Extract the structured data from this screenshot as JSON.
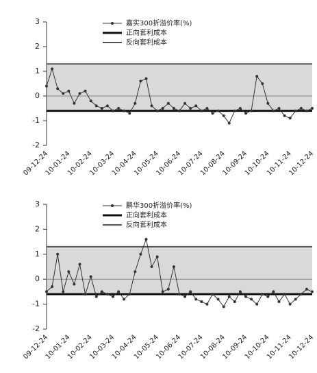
{
  "chart_data": [
    {
      "type": "line",
      "categories": [
        "09-12-24",
        null,
        null,
        null,
        "10-01-24",
        null,
        null,
        null,
        "10-02-24",
        null,
        null,
        null,
        "10-03-24",
        null,
        null,
        null,
        "10-04-24",
        null,
        null,
        null,
        "10-05-24",
        null,
        null,
        null,
        "10-06-24",
        null,
        null,
        null,
        "10-07-24",
        null,
        null,
        null,
        "10-08-24",
        null,
        null,
        null,
        "10-09-24",
        null,
        null,
        null,
        "10-10-24",
        null,
        null,
        null,
        "10-11-24",
        null,
        null,
        null,
        "10-12-24"
      ],
      "series": [
        {
          "name": "嘉实300折溢价率(%)",
          "color": "#333333",
          "values": [
            0.4,
            1.1,
            0.3,
            0.1,
            0.2,
            -0.3,
            0.1,
            0.2,
            -0.2,
            -0.4,
            -0.5,
            -0.4,
            -0.6,
            -0.5,
            -0.6,
            -0.7,
            -0.3,
            0.6,
            0.7,
            -0.4,
            -0.6,
            -0.5,
            -0.3,
            -0.5,
            -0.6,
            -0.3,
            -0.5,
            -0.4,
            -0.6,
            -0.5,
            -0.7,
            -0.6,
            -0.8,
            -1.1,
            -0.6,
            -0.5,
            -0.7,
            -0.6,
            0.8,
            0.5,
            -0.3,
            -0.6,
            -0.5,
            -0.8,
            -0.9,
            -0.6,
            -0.5,
            -0.6,
            -0.5
          ]
        }
      ],
      "reference_lines": [
        {
          "name": "正向套利成本",
          "color": "#111111",
          "value": -0.6
        },
        {
          "name": "反向套利成本",
          "color": "#555555",
          "value": 1.3
        }
      ],
      "band_color": "#d9d9d9",
      "ylim": [
        -2,
        3
      ],
      "yticks": [
        -2,
        -1,
        0,
        1,
        2,
        3
      ]
    },
    {
      "type": "line",
      "categories": [
        "09-12-24",
        null,
        null,
        null,
        "10-01-24",
        null,
        null,
        null,
        "10-02-24",
        null,
        null,
        null,
        "10-03-24",
        null,
        null,
        null,
        "10-04-24",
        null,
        null,
        null,
        "10-05-24",
        null,
        null,
        null,
        "10-06-24",
        null,
        null,
        null,
        "10-07-24",
        null,
        null,
        null,
        "10-08-24",
        null,
        null,
        null,
        "10-09-24",
        null,
        null,
        null,
        "10-10-24",
        null,
        null,
        null,
        "10-11-24",
        null,
        null,
        null,
        "10-12-24"
      ],
      "series": [
        {
          "name": "鹏华300折溢价率(%)",
          "color": "#333333",
          "values": [
            -0.5,
            -0.3,
            1.0,
            -0.5,
            0.3,
            -0.2,
            0.6,
            -0.6,
            0.1,
            -0.7,
            -0.5,
            -0.6,
            -0.7,
            -0.5,
            -0.8,
            -0.6,
            0.3,
            1.0,
            1.6,
            0.5,
            0.9,
            -0.5,
            -0.4,
            0.5,
            -0.6,
            -0.7,
            -0.5,
            -0.8,
            -0.9,
            -1.0,
            -0.6,
            -0.8,
            -1.1,
            -0.7,
            -0.9,
            -0.5,
            -0.7,
            -0.8,
            -1.0,
            -0.6,
            -0.7,
            -0.5,
            -0.9,
            -0.6,
            -1.0,
            -0.8,
            -0.6,
            -0.4,
            -0.5
          ]
        }
      ],
      "reference_lines": [
        {
          "name": "正向套利成本",
          "color": "#111111",
          "value": -0.6
        },
        {
          "name": "反向套利成本",
          "color": "#555555",
          "value": 1.3
        }
      ],
      "band_color": "#d9d9d9",
      "ylim": [
        -2,
        3
      ],
      "yticks": [
        -2,
        -1,
        0,
        1,
        2,
        3
      ]
    }
  ]
}
